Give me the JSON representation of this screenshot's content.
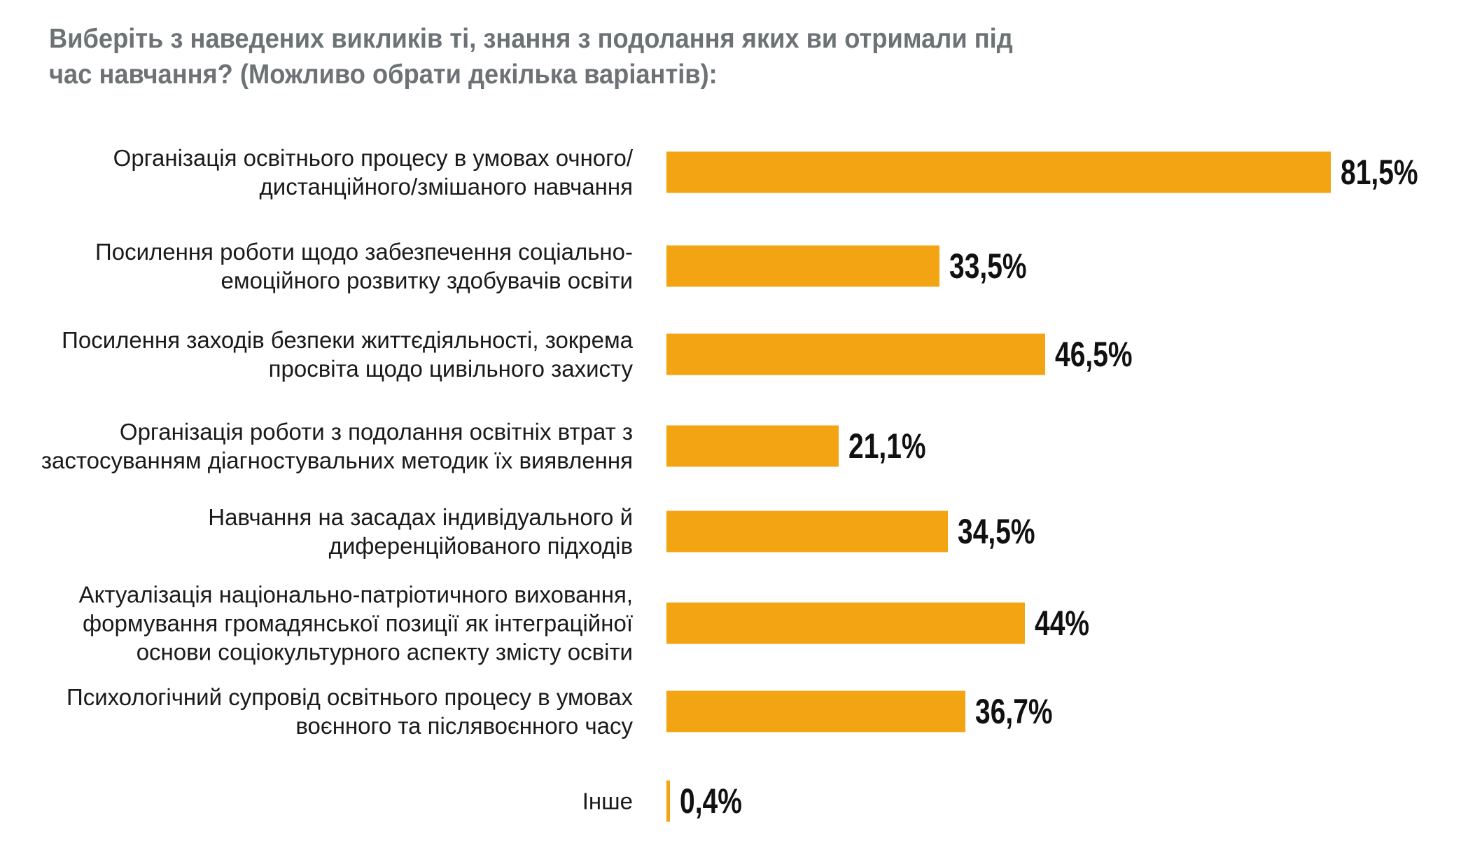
{
  "chart_data": {
    "type": "bar",
    "orientation": "horizontal",
    "title": "Виберіть з наведених викликів ті, знання з подолання яких ви отримали під час навчання? (Можливо обрати декілька варіантів):",
    "categories": [
      "Організація освітнього процесу в умовах очного/дистанційного/змішаного навчання",
      "Посилення роботи щодо забезпечення соціально-емоційного розвитку здобувачів освіти",
      "Посилення заходів безпеки життєдіяльності, зокрема просвіта щодо цивільного захисту",
      "Організація роботи з подолання освітніх втрат з застосуванням діагностувальних методик їх виявлення",
      "Навчання на засадах індивідуального й диференційованого підходів",
      "Актуалізація національно-патріотичного виховання, формування громадянської позиції як інтеграційної основи соціокультурного аспекту змісту освіти",
      "Психологічний супровід освітнього процесу в умовах воєнного та післявоєнного часу",
      "Інше"
    ],
    "values": [
      81.5,
      33.5,
      46.5,
      21.1,
      34.5,
      44,
      36.7,
      0.4
    ],
    "value_labels": [
      "81,5%",
      "33,5%",
      "46,5%",
      "21,1%",
      "34,5%",
      "44%",
      "36,7%",
      "0,4%"
    ],
    "xlabel": "",
    "ylabel": "",
    "xlim": [
      0,
      81.5
    ],
    "grid": false,
    "bar_color": "#f3a412"
  }
}
